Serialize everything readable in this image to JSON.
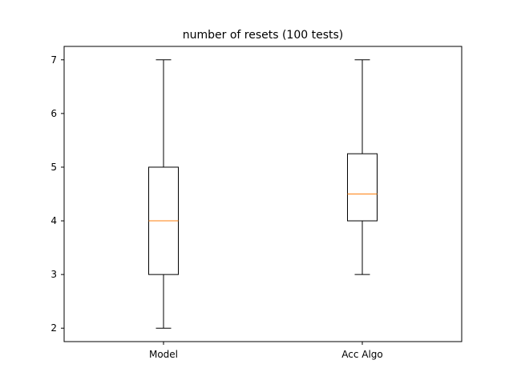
{
  "chart_data": {
    "type": "box",
    "title": "number of resets (100 tests)",
    "xlabel": "",
    "ylabel": "",
    "categories": [
      "Model",
      "Acc Algo"
    ],
    "boxes": [
      {
        "label": "Model",
        "whisker_low": 2,
        "q1": 3,
        "median": 4,
        "q3": 5,
        "whisker_high": 7
      },
      {
        "label": "Acc Algo",
        "whisker_low": 3,
        "q1": 4,
        "median": 4.5,
        "q3": 5.25,
        "whisker_high": 7
      }
    ],
    "yticks": [
      2,
      3,
      4,
      5,
      6,
      7
    ],
    "ylim": [
      1.75,
      7.25
    ],
    "grid": false,
    "colors": {
      "box": "#000000",
      "median": "#ff7f0e",
      "axes": "#000000",
      "background": "#ffffff"
    }
  }
}
